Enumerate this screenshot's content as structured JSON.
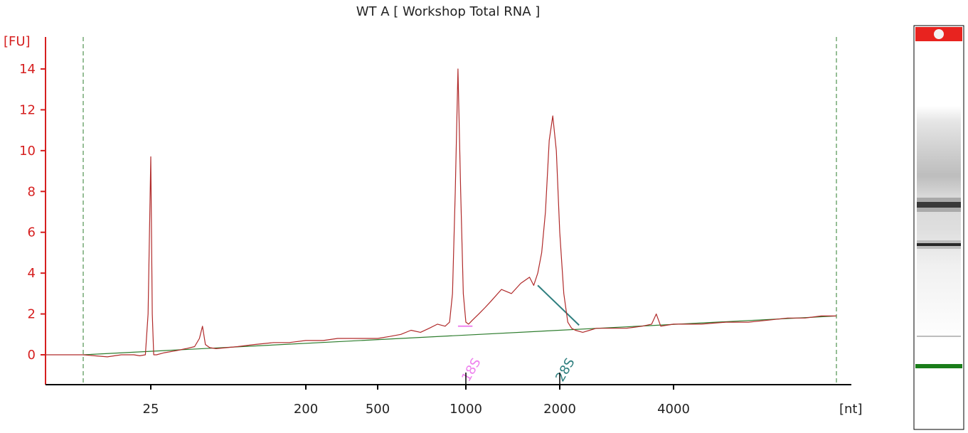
{
  "chart_data": {
    "type": "line",
    "title": "WT A  [ Workshop Total RNA ]",
    "ylabel": "[FU]",
    "xlabel": "[nt]",
    "ylim": [
      -1.5,
      15
    ],
    "yticks": [
      0,
      2,
      4,
      6,
      8,
      10,
      12,
      14
    ],
    "xticks": [
      {
        "label": "25",
        "value": 25
      },
      {
        "label": "200",
        "value": 200
      },
      {
        "label": "500",
        "value": 500
      },
      {
        "label": "1000",
        "value": 1000
      },
      {
        "label": "2000",
        "value": 2000
      },
      {
        "label": "4000",
        "value": 4000
      }
    ],
    "series": [
      {
        "color": "#b02a2a",
        "x": [
          12,
          15,
          18,
          20,
          22,
          23,
          24,
          24.5,
          25,
          25.5,
          26,
          27,
          30,
          35,
          40,
          45,
          48,
          50,
          52,
          55,
          60,
          80,
          100,
          130,
          160,
          200,
          250,
          300,
          350,
          400,
          500,
          550,
          600,
          650,
          700,
          750,
          800,
          850,
          880,
          900,
          920,
          940,
          960,
          980,
          1000,
          1020,
          1050,
          1100,
          1150,
          1200,
          1300,
          1400,
          1500,
          1600,
          1650,
          1700,
          1750,
          1800,
          1850,
          1900,
          1950,
          2000,
          2050,
          2100,
          2150,
          2200,
          2300,
          2400,
          2500,
          2700,
          3000,
          3300,
          3500,
          3600,
          3700,
          4000,
          4500,
          5000,
          5500,
          6000,
          6500,
          7000,
          7500,
          8000
        ],
        "y": [
          0,
          0,
          -0.1,
          0,
          0,
          -0.05,
          0,
          2,
          9.7,
          2,
          0,
          0,
          0.1,
          0.2,
          0.3,
          0.4,
          0.8,
          1.4,
          0.5,
          0.35,
          0.3,
          0.4,
          0.5,
          0.6,
          0.6,
          0.7,
          0.7,
          0.8,
          0.8,
          0.8,
          0.8,
          0.9,
          1.0,
          1.2,
          1.1,
          1.3,
          1.5,
          1.4,
          1.6,
          3.0,
          8.0,
          14.0,
          8.0,
          3.0,
          1.6,
          1.5,
          1.7,
          2.0,
          2.3,
          2.6,
          3.2,
          3.0,
          3.5,
          3.8,
          3.4,
          4.0,
          5.0,
          7.0,
          10.5,
          11.7,
          10.0,
          6.0,
          3.0,
          1.6,
          1.3,
          1.2,
          1.1,
          1.2,
          1.3,
          1.3,
          1.3,
          1.4,
          1.5,
          2.0,
          1.4,
          1.5,
          1.5,
          1.6,
          1.6,
          1.7,
          1.8,
          1.8,
          1.9,
          1.9
        ]
      }
    ],
    "baseline": {
      "x": [
        15,
        8000
      ],
      "y": [
        0,
        1.9
      ],
      "color": "#2e7d2e"
    },
    "markers": {
      "x": [
        15,
        8000
      ],
      "color": "#2e7d2e"
    },
    "annotations": [
      {
        "label": "18S",
        "x": 1000,
        "color": "#ee82ee"
      },
      {
        "label": "28S",
        "x": 2000,
        "color": "#2f7f7f"
      }
    ],
    "peak_lines": [
      {
        "x": [
          940,
          1050
        ],
        "y": [
          1.4,
          1.4
        ],
        "color": "#ee82ee"
      },
      {
        "x": [
          1700,
          2250
        ],
        "y": [
          3.4,
          1.45
        ],
        "color": "#2f7f7f"
      }
    ],
    "axis_color": "#d61f1f",
    "gel": {
      "marker_color": "#e8231f",
      "lower_marker_color": "#1a7d1a"
    }
  }
}
